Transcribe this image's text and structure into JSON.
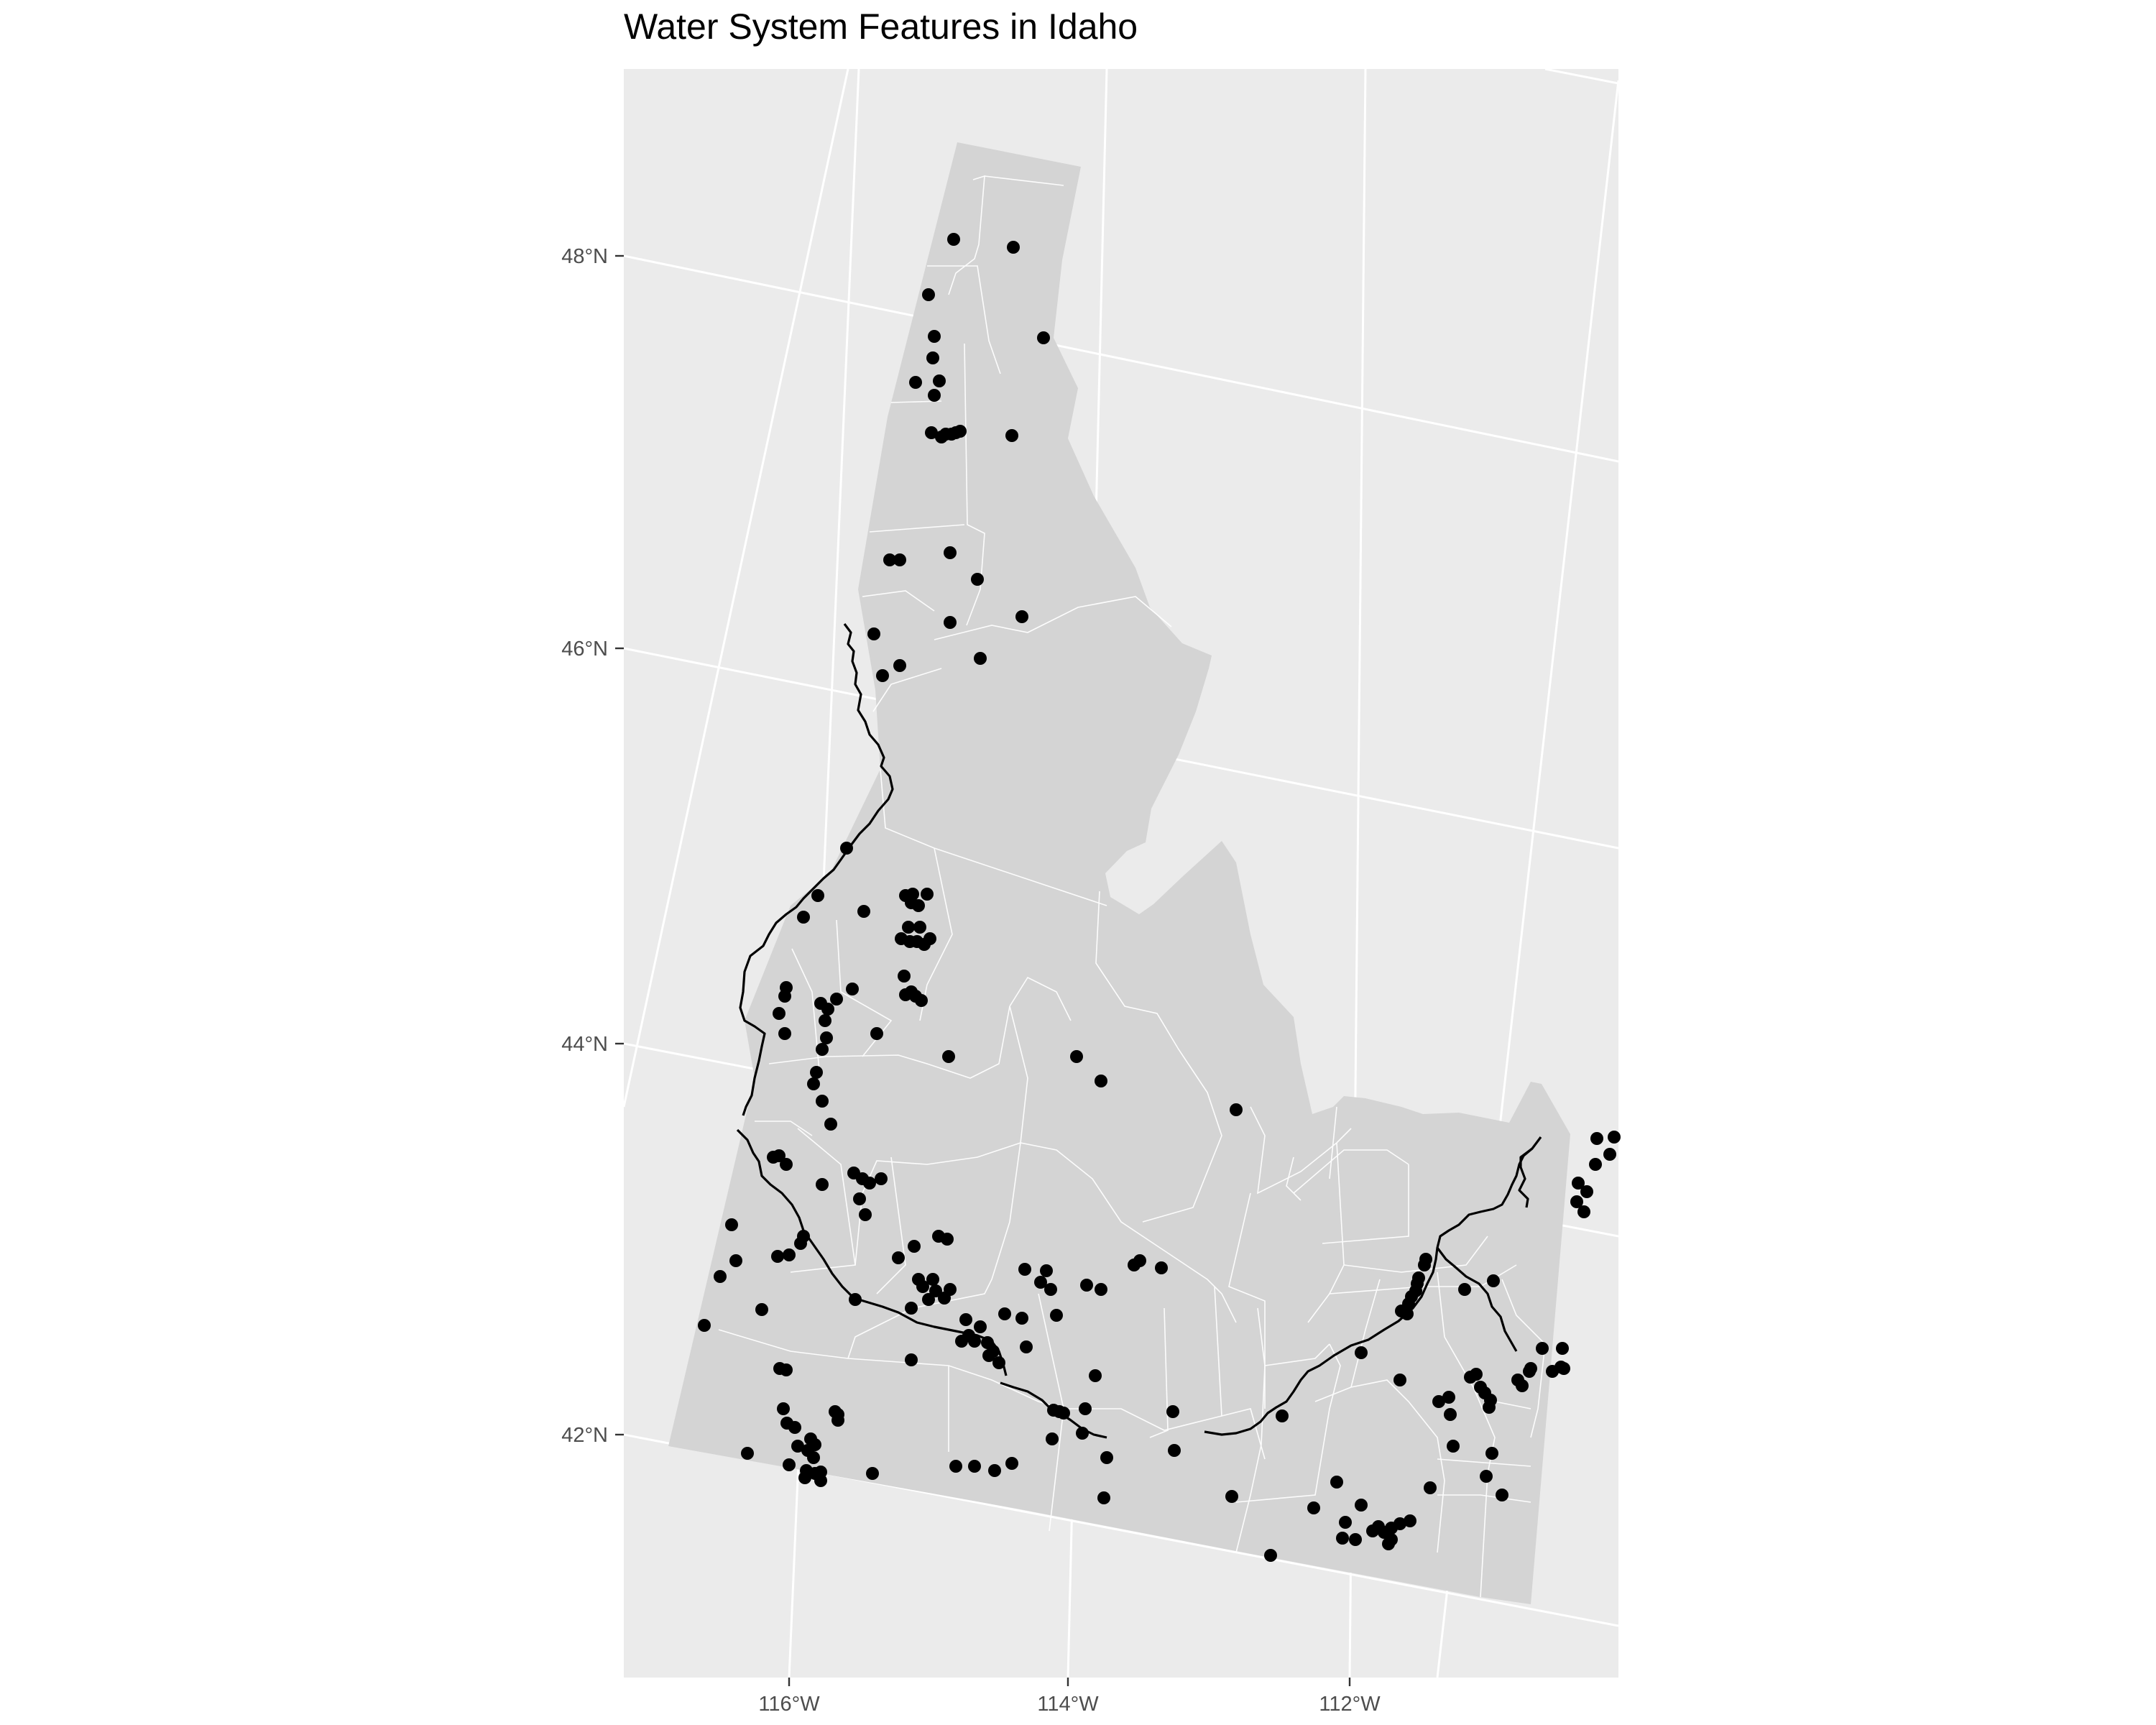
{
  "title": "Water System Features in Idaho",
  "colors": {
    "panel_background": "#ebebeb",
    "grid": "#ffffff",
    "state_fill": "#d4d4d4",
    "county_border": "#ffffff",
    "river": "#000000",
    "points": "#000000",
    "axis_text": "#4d4d4d"
  },
  "axes": {
    "latitude_labels": [
      {
        "label": "48°N",
        "lat": 48
      },
      {
        "label": "46°N",
        "lat": 46
      },
      {
        "label": "44°N",
        "lat": 44
      },
      {
        "label": "42°N",
        "lat": 42
      }
    ],
    "longitude_labels": [
      {
        "label": "116°W",
        "lon": -116
      },
      {
        "label": "114°W",
        "lon": -114
      },
      {
        "label": "112°W",
        "lon": -112
      }
    ]
  },
  "map_data": {
    "type": "point_map",
    "region": "Idaho",
    "layers": [
      "state",
      "county boundaries",
      "rivers",
      "water system points"
    ],
    "grid": true,
    "point_count": 184
  }
}
